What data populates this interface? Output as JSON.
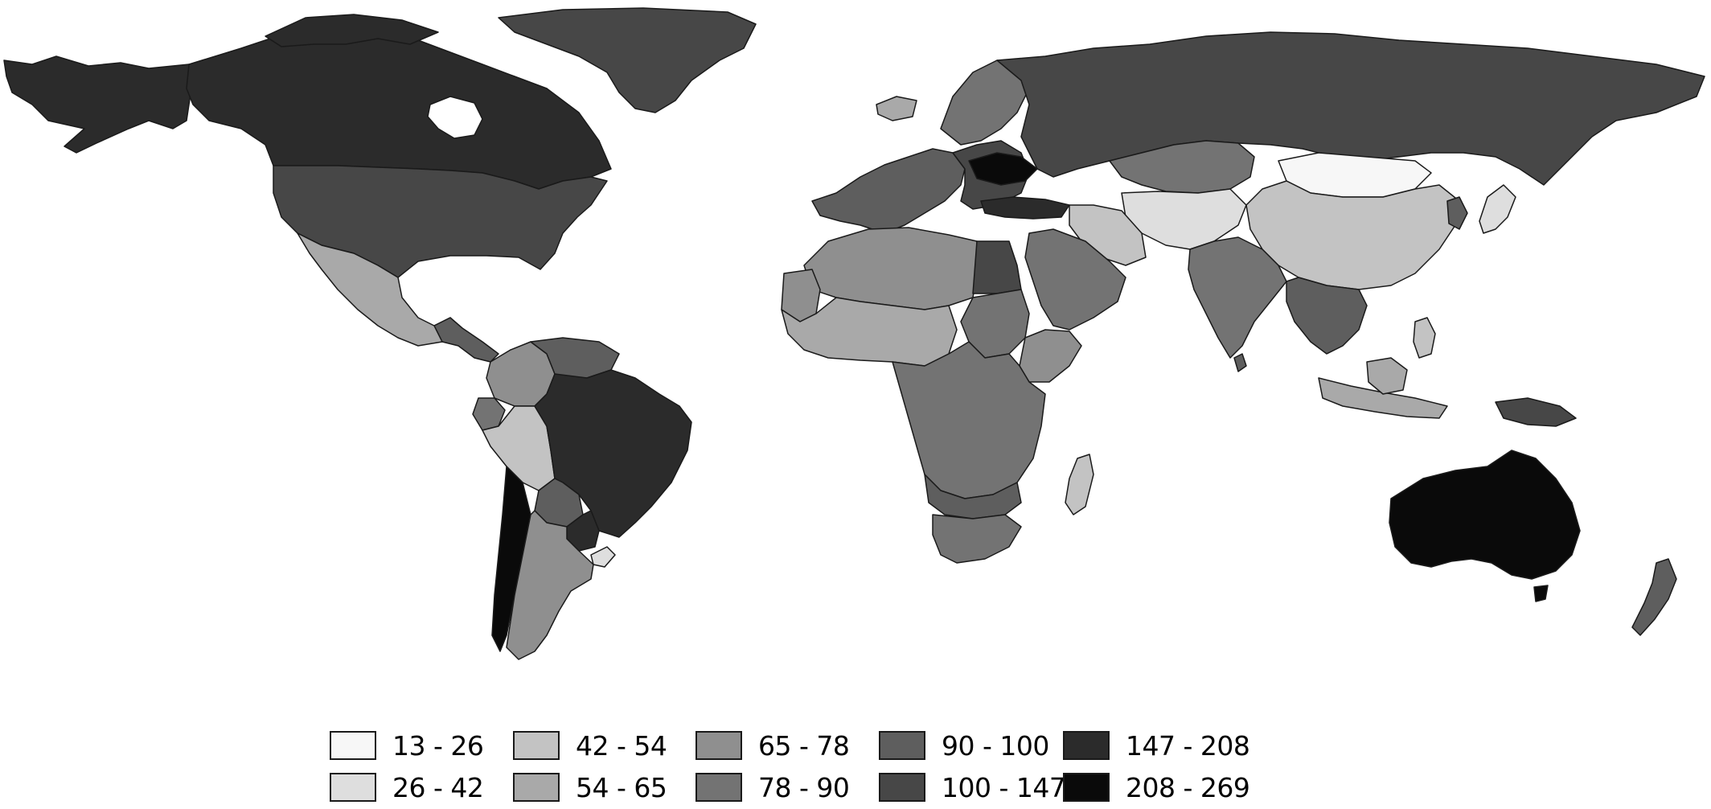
{
  "legend": {
    "classes": [
      {
        "label": "13 - 26",
        "color": "#f7f7f7"
      },
      {
        "label": "26 - 42",
        "color": "#dedede"
      },
      {
        "label": "42 - 54",
        "color": "#c3c3c3"
      },
      {
        "label": "54 - 65",
        "color": "#a9a9a9"
      },
      {
        "label": "65 - 78",
        "color": "#8f8f8f"
      },
      {
        "label": "78 - 90",
        "color": "#737373"
      },
      {
        "label": "90 - 100",
        "color": "#5e5e5e"
      },
      {
        "label": "100 - 147",
        "color": "#474747"
      },
      {
        "label": "147 - 208",
        "color": "#2b2b2b"
      },
      {
        "label": "208 - 269",
        "color": "#0a0a0a"
      }
    ]
  },
  "map": {
    "type": "world choropleth",
    "regions": [
      {
        "name": "Alaska",
        "class": 8
      },
      {
        "name": "Canada",
        "class": 8
      },
      {
        "name": "Greenland",
        "class": 7
      },
      {
        "name": "United States",
        "class": 7
      },
      {
        "name": "Mexico",
        "class": 3
      },
      {
        "name": "Central America",
        "class": 6
      },
      {
        "name": "Colombia",
        "class": 4
      },
      {
        "name": "Venezuela",
        "class": 6
      },
      {
        "name": "Ecuador",
        "class": 5
      },
      {
        "name": "Peru",
        "class": 2
      },
      {
        "name": "Brazil",
        "class": 8
      },
      {
        "name": "Bolivia",
        "class": 6
      },
      {
        "name": "Paraguay",
        "class": 8
      },
      {
        "name": "Chile",
        "class": 1
      },
      {
        "name": "Argentina",
        "class": 9
      },
      {
        "name": "Uruguay",
        "class": 4
      },
      {
        "name": "Iceland",
        "class": 3
      },
      {
        "name": "Scandinavia",
        "class": 5
      },
      {
        "name": "Western Europe",
        "class": 6
      },
      {
        "name": "Eastern Europe",
        "class": 7
      },
      {
        "name": "Ukraine",
        "class": 9
      },
      {
        "name": "Russia",
        "class": 8
      },
      {
        "name": "Kazakhstan",
        "class": 7
      },
      {
        "name": "Turkey",
        "class": 5
      },
      {
        "name": "North Africa",
        "class": 1
      },
      {
        "name": "Egypt",
        "class": 2
      },
      {
        "name": "Arabian Peninsula",
        "class": 0
      },
      {
        "name": "Iran",
        "class": 2
      },
      {
        "name": "Central Asia",
        "class": 6
      },
      {
        "name": "Mongolia",
        "class": 1
      },
      {
        "name": "China",
        "class": 5
      },
      {
        "name": "India",
        "class": 6
      },
      {
        "name": "Southeast Asia",
        "class": 6
      },
      {
        "name": "Japan",
        "class": 2
      },
      {
        "name": "Korea",
        "class": 3
      },
      {
        "name": "Indonesia",
        "class": 7
      },
      {
        "name": "Philippines",
        "class": 4
      },
      {
        "name": "Papua New Guinea",
        "class": 7
      },
      {
        "name": "West Africa",
        "class": 5
      },
      {
        "name": "Mauritania",
        "class": 4
      },
      {
        "name": "Sudan",
        "class": 3
      },
      {
        "name": "Ethiopia",
        "class": 5
      },
      {
        "name": "Central & East Africa",
        "class": 4
      },
      {
        "name": "Southern Africa",
        "class": 5
      },
      {
        "name": "South Africa",
        "class": 6
      },
      {
        "name": "Madagascar",
        "class": 5
      },
      {
        "name": "Sri Lanka",
        "class": 2
      },
      {
        "name": "Australia",
        "class": 9
      },
      {
        "name": "New Zealand",
        "class": 6
      }
    ]
  }
}
